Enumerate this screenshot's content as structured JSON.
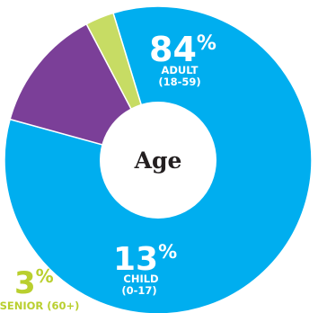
{
  "chart_data": {
    "type": "pie",
    "title": "",
    "center_label": "Age",
    "slices": [
      {
        "key": "adult",
        "value": 84,
        "percent_number": "84",
        "percent_symbol": "%",
        "label_line1": "ADULT",
        "label_line2": "(18-59)",
        "color": "#00aeef"
      },
      {
        "key": "child",
        "value": 13,
        "percent_number": "13",
        "percent_symbol": "%",
        "label_line1": "CHILD",
        "label_line2": "(0-17)",
        "color": "#7b3f98"
      },
      {
        "key": "senior",
        "value": 3,
        "percent_number": "3",
        "percent_symbol": "%",
        "label_line1": "SENIOR (60+)",
        "label_line2": "",
        "color": "#c7dc64"
      }
    ],
    "label_colors": {
      "adult": "#ffffff",
      "child": "#ffffff",
      "senior": "#b9cf2e"
    },
    "center_fill": "#ffffff",
    "center_text_color": "#231f20"
  }
}
